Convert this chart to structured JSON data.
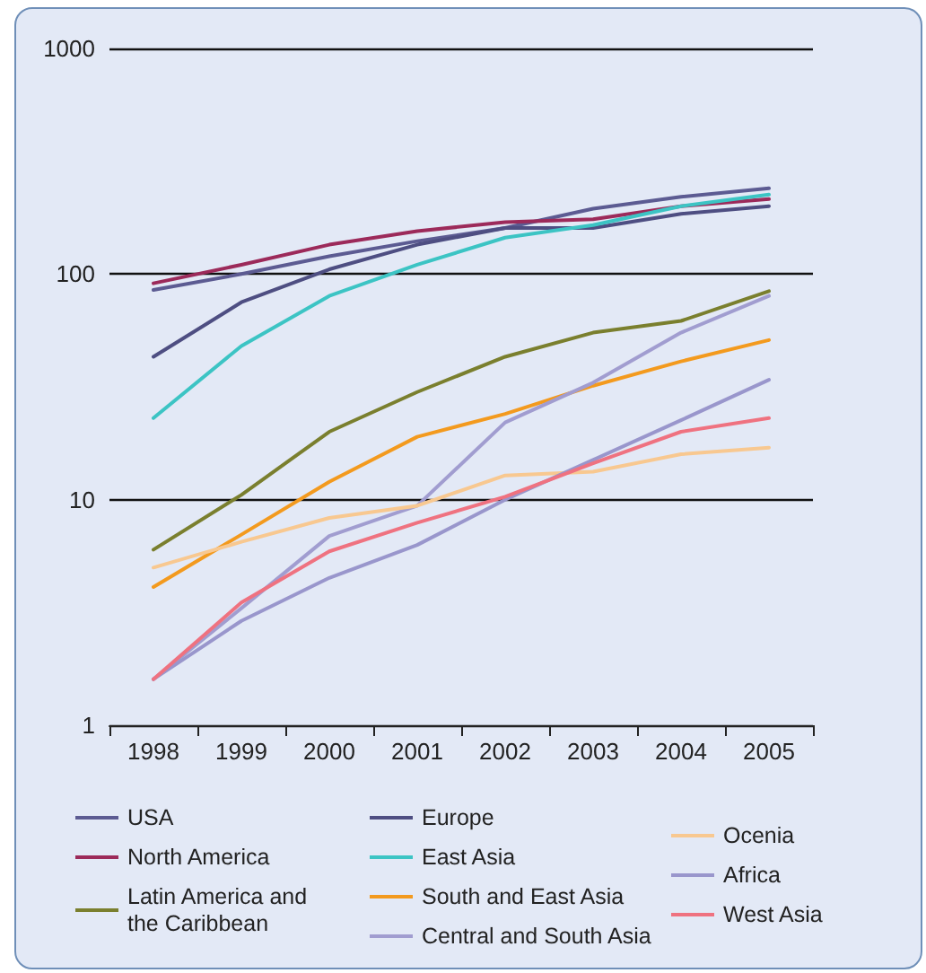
{
  "chart_data": {
    "type": "line",
    "categories": [
      "1998",
      "1999",
      "2000",
      "2001",
      "2002",
      "2003",
      "2004",
      "2005"
    ],
    "log": true,
    "ylim": [
      1,
      1000
    ],
    "yticks": [
      1,
      10,
      100,
      1000
    ],
    "grid": "y",
    "legend": "bottom",
    "marker": "none",
    "line_style": "solid",
    "series": [
      {
        "name": "USA",
        "color": "#5c5b92",
        "values": [
          85,
          100,
          120,
          140,
          160,
          195,
          220,
          240
        ]
      },
      {
        "name": "North America",
        "color": "#9c2a5a",
        "values": [
          91,
          110,
          135,
          155,
          170,
          175,
          200,
          215
        ]
      },
      {
        "name": "Latin America and the Caribbean",
        "color": "#7a7f2e",
        "values": [
          6,
          10.5,
          20,
          30,
          43,
          55,
          62,
          84
        ]
      },
      {
        "name": "Europe",
        "color": "#4e4e82",
        "values": [
          43,
          75,
          105,
          135,
          160,
          160,
          185,
          200
        ]
      },
      {
        "name": "East Asia",
        "color": "#3cc4c4",
        "values": [
          23,
          48,
          80,
          110,
          145,
          165,
          200,
          225
        ]
      },
      {
        "name": "South and East Asia",
        "color": "#f39a1e",
        "values": [
          4.1,
          7,
          12,
          19,
          24,
          32,
          41,
          51
        ]
      },
      {
        "name": "Central and South Asia",
        "color": "#a19dd0",
        "values": [
          1.6,
          3.3,
          6.9,
          9.4,
          22,
          33,
          55,
          80
        ]
      },
      {
        "name": "Ocenia",
        "color": "#f8c890",
        "values": [
          5,
          6.5,
          8.3,
          9.4,
          12.8,
          13.3,
          15.9,
          17
        ]
      },
      {
        "name": "Africa",
        "color": "#9996cc",
        "values": [
          1.6,
          2.9,
          4.5,
          6.3,
          10,
          15,
          22.5,
          34
        ]
      },
      {
        "name": "West Asia",
        "color": "#ef7280",
        "values": [
          1.6,
          3.5,
          5.9,
          7.9,
          10.3,
          14.5,
          20,
          23
        ]
      }
    ]
  }
}
